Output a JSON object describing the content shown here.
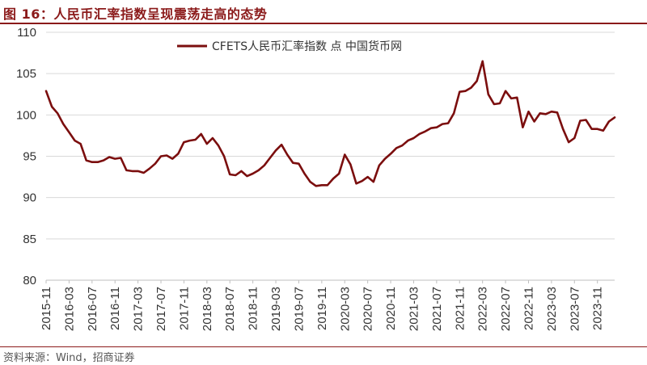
{
  "header": {
    "title": "图 16：人民币汇率指数呈现震荡走高的态势"
  },
  "footer": {
    "source": "资料来源：Wind，招商证券"
  },
  "colors": {
    "series": "#7B0E0E",
    "accent": "#8B1A1A",
    "grid": "#D9D9D9"
  },
  "chart_data": {
    "type": "line",
    "title": "",
    "xlabel": "",
    "ylabel": "",
    "ylim": [
      80,
      110
    ],
    "yticks": [
      "110",
      "105",
      "100",
      "95",
      "90",
      "85",
      "80"
    ],
    "xticks": [
      "2015-11",
      "2016-03",
      "2016-07",
      "2016-11",
      "2017-03",
      "2017-07",
      "2017-11",
      "2018-03",
      "2018-07",
      "2018-11",
      "2019-03",
      "2019-07",
      "2019-11",
      "2020-03",
      "2020-07",
      "2020-11",
      "2021-03",
      "2021-07",
      "2021-11",
      "2022-03",
      "2022-07",
      "2022-11",
      "2023-03",
      "2023-07",
      "2023-11"
    ],
    "grid": true,
    "legend_position": "top",
    "series": [
      {
        "name": "CFETS人民币汇率指数 点 中国货币网",
        "x": [
          "2015-11",
          "2015-12",
          "2016-01",
          "2016-02",
          "2016-03",
          "2016-04",
          "2016-05",
          "2016-06",
          "2016-07",
          "2016-08",
          "2016-09",
          "2016-10",
          "2016-11",
          "2016-12",
          "2017-01",
          "2017-02",
          "2017-03",
          "2017-04",
          "2017-05",
          "2017-06",
          "2017-07",
          "2017-08",
          "2017-09",
          "2017-10",
          "2017-11",
          "2017-12",
          "2018-01",
          "2018-02",
          "2018-03",
          "2018-04",
          "2018-05",
          "2018-06",
          "2018-07",
          "2018-08",
          "2018-09",
          "2018-10",
          "2018-11",
          "2018-12",
          "2019-01",
          "2019-02",
          "2019-03",
          "2019-04",
          "2019-05",
          "2019-06",
          "2019-07",
          "2019-08",
          "2019-09",
          "2019-10",
          "2019-11",
          "2019-12",
          "2020-01",
          "2020-02",
          "2020-03",
          "2020-04",
          "2020-05",
          "2020-06",
          "2020-07",
          "2020-08",
          "2020-09",
          "2020-10",
          "2020-11",
          "2020-12",
          "2021-01",
          "2021-02",
          "2021-03",
          "2021-04",
          "2021-05",
          "2021-06",
          "2021-07",
          "2021-08",
          "2021-09",
          "2021-10",
          "2021-11",
          "2021-12",
          "2022-01",
          "2022-02",
          "2022-03",
          "2022-04",
          "2022-05",
          "2022-06",
          "2022-07",
          "2022-08",
          "2022-09",
          "2022-10",
          "2022-11",
          "2022-12",
          "2023-01",
          "2023-02",
          "2023-03",
          "2023-04",
          "2023-05",
          "2023-06",
          "2023-07",
          "2023-08",
          "2023-09",
          "2023-10",
          "2023-11",
          "2023-12",
          "2024-01",
          "2024-02"
        ],
        "values": [
          102.9,
          101.0,
          100.2,
          98.9,
          97.9,
          96.9,
          96.5,
          94.5,
          94.3,
          94.3,
          94.5,
          94.9,
          94.7,
          94.8,
          93.3,
          93.2,
          93.2,
          93.0,
          93.5,
          94.1,
          95.0,
          95.1,
          94.7,
          95.3,
          96.7,
          96.9,
          97.0,
          97.7,
          96.5,
          97.2,
          96.3,
          95.0,
          92.8,
          92.7,
          93.2,
          92.6,
          92.9,
          93.3,
          93.9,
          94.8,
          95.7,
          96.4,
          95.2,
          94.2,
          94.1,
          92.9,
          91.9,
          91.4,
          91.5,
          91.5,
          92.3,
          92.9,
          95.2,
          94.0,
          91.7,
          92.0,
          92.5,
          91.9,
          93.9,
          94.7,
          95.3,
          96.0,
          96.3,
          96.9,
          97.2,
          97.7,
          98.0,
          98.4,
          98.5,
          98.9,
          99.0,
          100.2,
          102.8,
          102.9,
          103.3,
          104.1,
          106.5,
          102.5,
          101.3,
          101.4,
          102.9,
          102.0,
          102.1,
          98.5,
          100.4,
          99.2,
          100.2,
          100.1,
          100.4,
          100.3,
          98.3,
          96.7,
          97.2,
          99.3,
          99.4,
          98.3,
          98.3,
          98.1,
          99.2,
          99.7
        ]
      }
    ]
  }
}
